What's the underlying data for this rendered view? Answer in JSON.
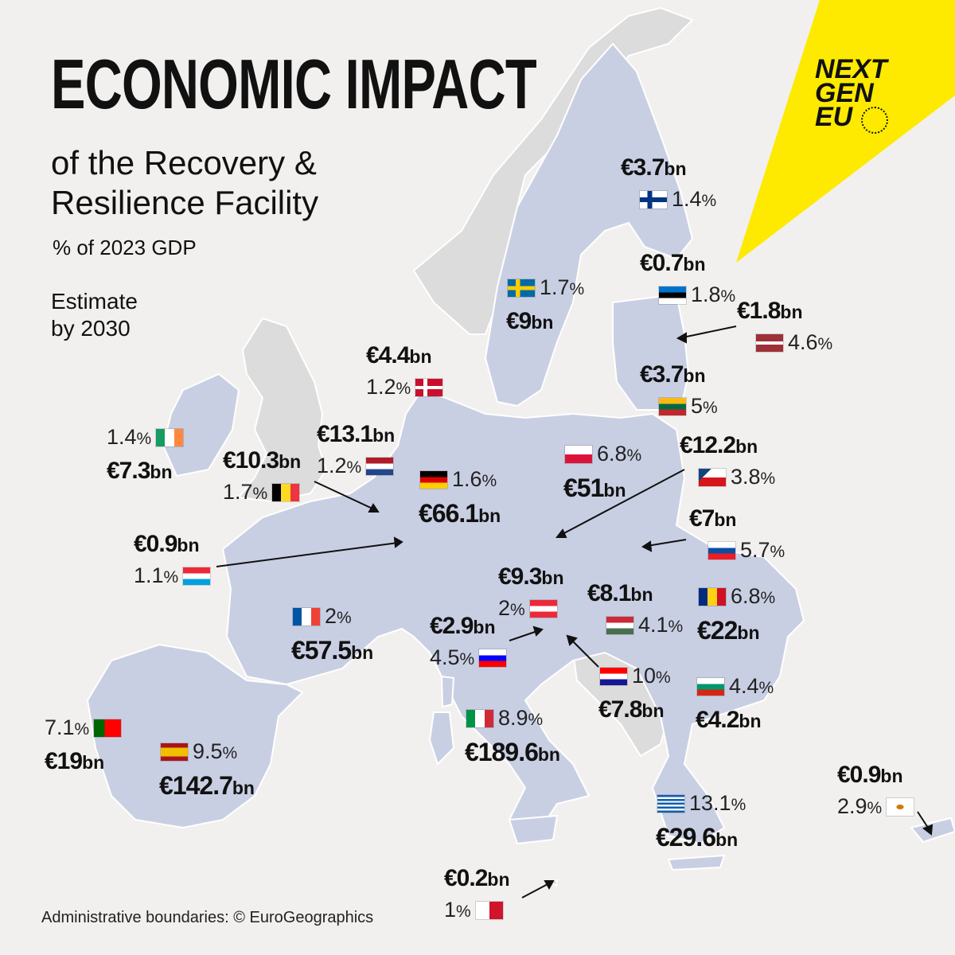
{
  "title": "ECONOMIC IMPACT",
  "title_lines": [
    "of the Recovery &",
    "Resilience Facility"
  ],
  "subtitle": "% of 2023 GDP",
  "estimate_lines": [
    "Estimate",
    "by 2030"
  ],
  "credit": "Administrative boundaries: © EuroGeographics",
  "logo_lines": [
    "NEXT",
    "GEN",
    "EU"
  ],
  "colors": {
    "eu_member": "#c9cfe3",
    "non_member": "#dcdcdc",
    "background": "#f1f0ee",
    "accent_yellow": "#fdea00"
  },
  "countries": [
    {
      "id": "fi",
      "amount": "€3.7",
      "unit": "bn",
      "pct": "1.4",
      "pct_unit": "%",
      "flag": "finland-flag"
    },
    {
      "id": "se",
      "amount": "€9",
      "unit": "bn",
      "pct": "1.7",
      "pct_unit": "%",
      "flag": "sweden-flag"
    },
    {
      "id": "ee",
      "amount": "€0.7",
      "unit": "bn",
      "pct": "1.8",
      "pct_unit": "%",
      "flag": "estonia-flag"
    },
    {
      "id": "lv",
      "amount": "€1.8",
      "unit": "bn",
      "pct": "4.6",
      "pct_unit": "%",
      "flag": "latvia-flag"
    },
    {
      "id": "lt",
      "amount": "€3.7",
      "unit": "bn",
      "pct": "5",
      "pct_unit": "%",
      "flag": "lithuania-flag"
    },
    {
      "id": "dk",
      "amount": "€4.4",
      "unit": "bn",
      "pct": "1.2",
      "pct_unit": "%",
      "flag": "denmark-flag"
    },
    {
      "id": "ie",
      "amount": "€7.3",
      "unit": "bn",
      "pct": "1.4",
      "pct_unit": "%",
      "flag": "ireland-flag"
    },
    {
      "id": "nl",
      "amount": "€13.1",
      "unit": "bn",
      "pct": "1.2",
      "pct_unit": "%",
      "flag": "netherlands-flag"
    },
    {
      "id": "be",
      "amount": "€10.3",
      "unit": "bn",
      "pct": "1.7",
      "pct_unit": "%",
      "flag": "belgium-flag"
    },
    {
      "id": "de",
      "amount": "€66.1",
      "unit": "bn",
      "pct": "1.6",
      "pct_unit": "%",
      "flag": "germany-flag"
    },
    {
      "id": "pl",
      "amount": "€51",
      "unit": "bn",
      "pct": "6.8",
      "pct_unit": "%",
      "flag": "poland-flag"
    },
    {
      "id": "cz",
      "amount": "€12.2",
      "unit": "bn",
      "pct": "3.8",
      "pct_unit": "%",
      "flag": "czechia-flag"
    },
    {
      "id": "lu",
      "amount": "€0.9",
      "unit": "bn",
      "pct": "1.1",
      "pct_unit": "%",
      "flag": "luxembourg-flag"
    },
    {
      "id": "sk",
      "amount": "€7",
      "unit": "bn",
      "pct": "5.7",
      "pct_unit": "%",
      "flag": "slovakia-flag"
    },
    {
      "id": "at",
      "amount": "€9.3",
      "unit": "bn",
      "pct": "2",
      "pct_unit": "%",
      "flag": "austria-flag"
    },
    {
      "id": "hu",
      "amount": "€8.1",
      "unit": "bn",
      "pct": "4.1",
      "pct_unit": "%",
      "flag": "hungary-flag"
    },
    {
      "id": "ro",
      "amount": "€22",
      "unit": "bn",
      "pct": "6.8",
      "pct_unit": "%",
      "flag": "romania-flag"
    },
    {
      "id": "fr",
      "amount": "€57.5",
      "unit": "bn",
      "pct": "2",
      "pct_unit": "%",
      "flag": "france-flag"
    },
    {
      "id": "si",
      "amount": "€2.9",
      "unit": "bn",
      "pct": "4.5",
      "pct_unit": "%",
      "flag": "slovenia-flag"
    },
    {
      "id": "hr",
      "amount": "€7.8",
      "unit": "bn",
      "pct": "10",
      "pct_unit": "%",
      "flag": "croatia-flag"
    },
    {
      "id": "bg",
      "amount": "€4.2",
      "unit": "bn",
      "pct": "4.4",
      "pct_unit": "%",
      "flag": "bulgaria-flag"
    },
    {
      "id": "it",
      "amount": "€189.6",
      "unit": "bn",
      "pct": "8.9",
      "pct_unit": "%",
      "flag": "italy-flag"
    },
    {
      "id": "pt",
      "amount": "€19",
      "unit": "bn",
      "pct": "7.1",
      "pct_unit": "%",
      "flag": "portugal-flag"
    },
    {
      "id": "es",
      "amount": "€142.7",
      "unit": "bn",
      "pct": "9.5",
      "pct_unit": "%",
      "flag": "spain-flag"
    },
    {
      "id": "gr",
      "amount": "€29.6",
      "unit": "bn",
      "pct": "13.1",
      "pct_unit": "%",
      "flag": "greece-flag"
    },
    {
      "id": "cy",
      "amount": "€0.9",
      "unit": "bn",
      "pct": "2.9",
      "pct_unit": "%",
      "flag": "cyprus-flag"
    },
    {
      "id": "mt",
      "amount": "€0.2",
      "unit": "bn",
      "pct": "1",
      "pct_unit": "%",
      "flag": "malta-flag"
    }
  ]
}
